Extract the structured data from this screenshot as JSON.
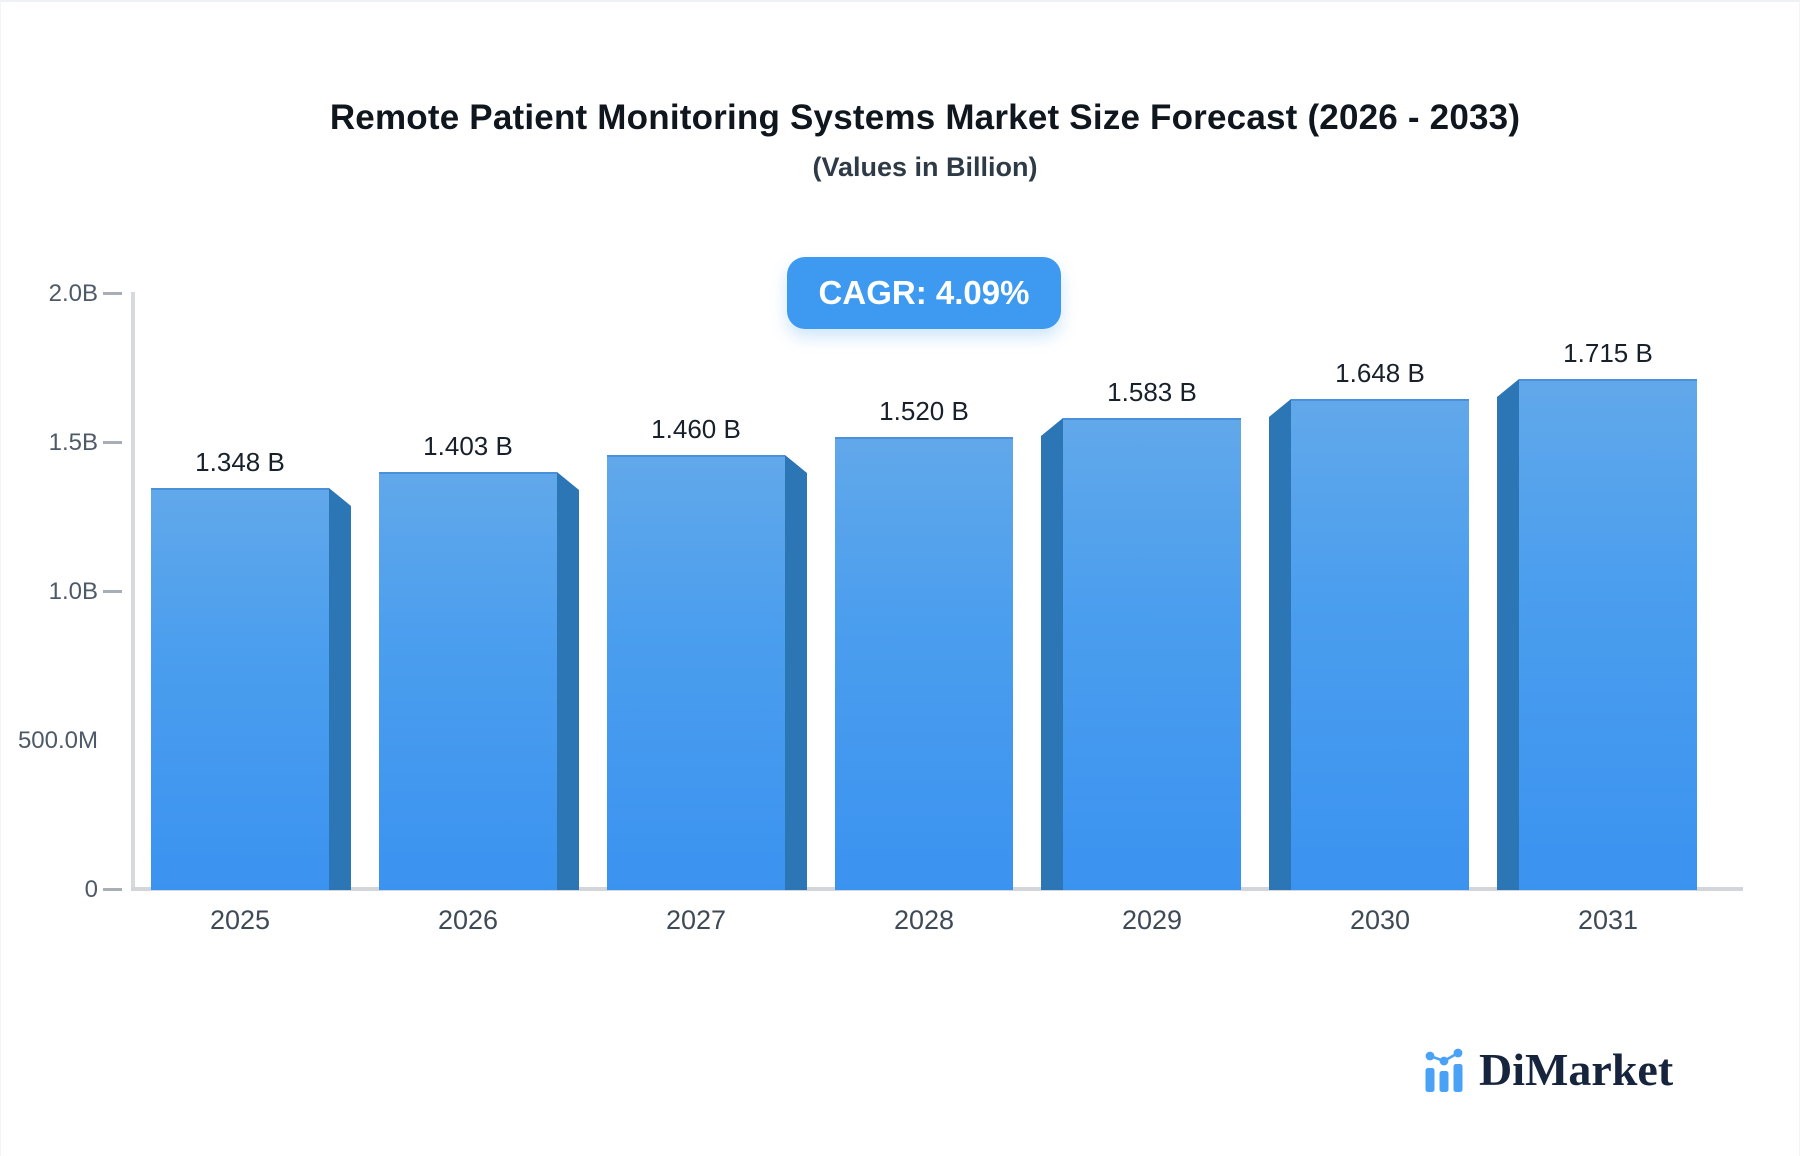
{
  "header": {
    "title": "Remote Patient Monitoring Systems Market Size Forecast (2026 - 2033)",
    "subtitle": "(Values in Billion)",
    "cagr_badge": "CAGR: 4.09%"
  },
  "chart_data": {
    "type": "bar",
    "title": "Remote Patient Monitoring Systems Market Size Forecast (2026 - 2033)",
    "subtitle": "(Values in Billion)",
    "annotation": "CAGR: 4.09%",
    "unit": "Billion",
    "categories": [
      "2025",
      "2026",
      "2027",
      "2028",
      "2029",
      "2030",
      "2031"
    ],
    "values": [
      1.348,
      1.403,
      1.46,
      1.52,
      1.583,
      1.648,
      1.715
    ],
    "value_labels": [
      "1.348 B",
      "1.403 B",
      "1.460 B",
      "1.520 B",
      "1.583 B",
      "1.648 B",
      "1.715 B"
    ],
    "xlabel": "",
    "ylabel": "",
    "ylim": [
      0,
      2.0
    ],
    "grid": false,
    "legend": false,
    "yticks": [
      {
        "label": "2.0B",
        "value": 2.0,
        "dash": true
      },
      {
        "label": "1.5B",
        "value": 1.5,
        "dash": true
      },
      {
        "label": "1.0B",
        "value": 1.0,
        "dash": true
      },
      {
        "label": "500.0M",
        "value": 0.5,
        "dash": false
      },
      {
        "label": "0",
        "value": 0.0,
        "dash": true
      }
    ]
  },
  "branding": {
    "logo_text": "DiMarket",
    "logo_icon": "mini-bar-chart-icon"
  },
  "colors": {
    "accent_blue": "#3e9af0",
    "bar_gradient_top": "#61a8ea",
    "bar_gradient_bottom": "#3b93f0",
    "bar_side_face": "#2d76b6",
    "axis_gray": "#d2d5da",
    "tick_text": "#4e5a68",
    "title_text": "#10161e",
    "logo_navy": "#16243d",
    "logo_blue": "#4aa2f7"
  }
}
